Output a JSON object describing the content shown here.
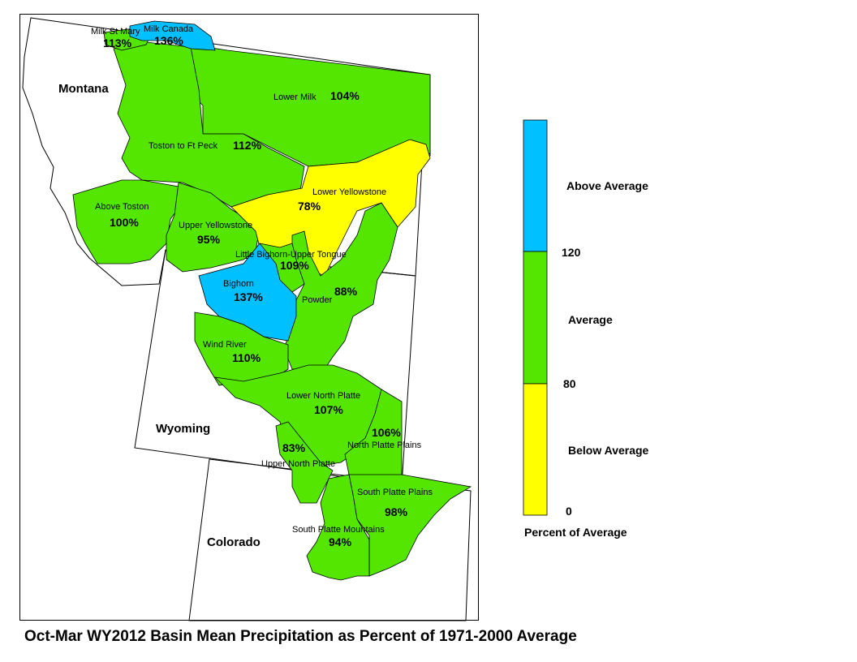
{
  "caption": "Oct-Mar WY2012 Basin Mean Precipitation as Percent of 1971-2000 Average",
  "colors": {
    "above": "#00c0ff",
    "average": "#55e600",
    "below": "#ffff00",
    "outline": "#000000"
  },
  "states": {
    "montana": "Montana",
    "wyoming": "Wyoming",
    "colorado": "Colorado"
  },
  "basins": {
    "milk_st_mary": {
      "name": "Milk St Mary",
      "pct": "113%"
    },
    "milk_canada": {
      "name": "Milk Canada",
      "pct": "136%"
    },
    "lower_milk": {
      "name": "Lower Milk",
      "pct": "104%"
    },
    "toston_ft_peck": {
      "name": "Toston to Ft Peck",
      "pct": "112%"
    },
    "above_toston": {
      "name": "Above Toston",
      "pct": "100%"
    },
    "upper_yellowstone": {
      "name": "Upper Yellowstone",
      "pct": "95%"
    },
    "lower_yellowstone": {
      "name": "Lower Yellowstone",
      "pct": "78%"
    },
    "little_bighorn": {
      "name": "Little Bighorn-Upper Tongue",
      "pct": "109%"
    },
    "bighorn": {
      "name": "Bighorn",
      "pct": "137%"
    },
    "powder": {
      "name": "Powder",
      "pct": "88%"
    },
    "wind_river": {
      "name": "Wind River",
      "pct": "110%"
    },
    "lower_north_platte": {
      "name": "Lower North Platte",
      "pct": "107%"
    },
    "north_platte_plains": {
      "name": "North Platte Plains",
      "pct": "106%"
    },
    "upper_north_platte": {
      "name": "Upper North Platte",
      "pct": "83%"
    },
    "south_platte_plains": {
      "name": "South Platte Plains",
      "pct": "98%"
    },
    "south_platte_mountains": {
      "name": "South Platte Mountains",
      "pct": "94%"
    }
  },
  "legend": {
    "above_label": "Above Average",
    "average_label": "Average",
    "below_label": "Below Average",
    "tick_120": "120",
    "tick_80": "80",
    "tick_0": "0",
    "title": "Percent of Average"
  }
}
